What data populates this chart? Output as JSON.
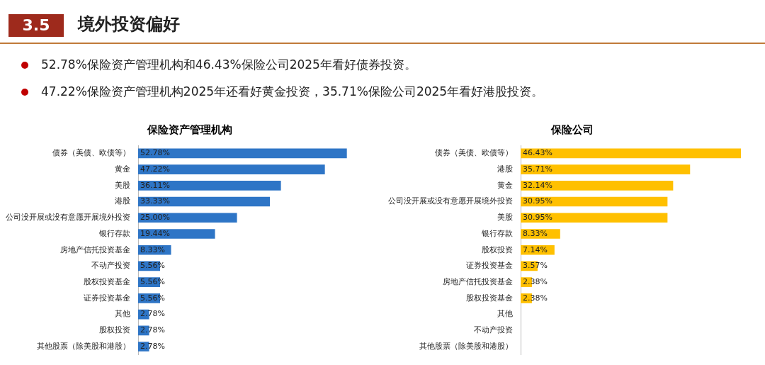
{
  "chart_data": [
    {
      "type": "other",
      "title": "境外投资偏好",
      "annotations": [
        "3.5",
        "52.78%保险资产管理机构和46.43%保险公司2025年看好债券投资。",
        "47.22%保险资产管理机构2025年还看好黄金投资，35.71%保险公司2025年看好港股投资。"
      ]
    },
    {
      "type": "bar",
      "orientation": "horizontal",
      "title": "保险资产管理机构",
      "categories": [
        "债券（美债、欧债等）",
        "黄金",
        "美股",
        "港股",
        "公司没开展或没有意愿开展境外投资",
        "银行存款",
        "房地产信托投资基金",
        "不动产投资",
        "股权投资基金",
        "证券投资基金",
        "其他",
        "股权投资",
        "其他股票（除美股和港股）"
      ],
      "values": [
        52.78,
        47.22,
        36.11,
        33.33,
        25,
        19.44,
        8.33,
        5.56,
        5.56,
        5.56,
        2.78,
        2.78,
        2.78
      ],
      "value_labels": [
        "52.78%",
        "47.22%",
        "36.11%",
        "33.33%",
        "25.00%",
        "19.44%",
        "8.33%",
        "5.56%",
        "5.56%",
        "5.56%",
        "2.78%",
        "2.78%",
        "2.78%"
      ],
      "color": "#2e75c6",
      "tick_labels": "y"
    },
    {
      "type": "bar",
      "orientation": "horizontal",
      "title": "保险公司",
      "categories": [
        "债券（美债、欧债等）",
        "港股",
        "黄金",
        "公司没开展或没有意愿开展境外投资",
        "美股",
        "银行存款",
        "股权投资",
        "证券投资基金",
        "房地产信托投资基金",
        "股权投资基金",
        "其他",
        "不动产投资",
        "其他股票（除美股和港股）"
      ],
      "values": [
        46.43,
        35.71,
        32.14,
        30.95,
        30.95,
        8.33,
        7.14,
        3.57,
        2.38,
        2.38,
        null,
        null,
        null
      ],
      "value_labels": [
        "46.43%",
        "35.71%",
        "32.14%",
        "30.95%",
        "30.95%",
        "8.33%",
        "7.14%",
        "3.57%",
        "2.38%",
        "2.38%",
        null,
        null,
        null
      ],
      "color": "#ffc000",
      "tick_labels": "y"
    }
  ]
}
